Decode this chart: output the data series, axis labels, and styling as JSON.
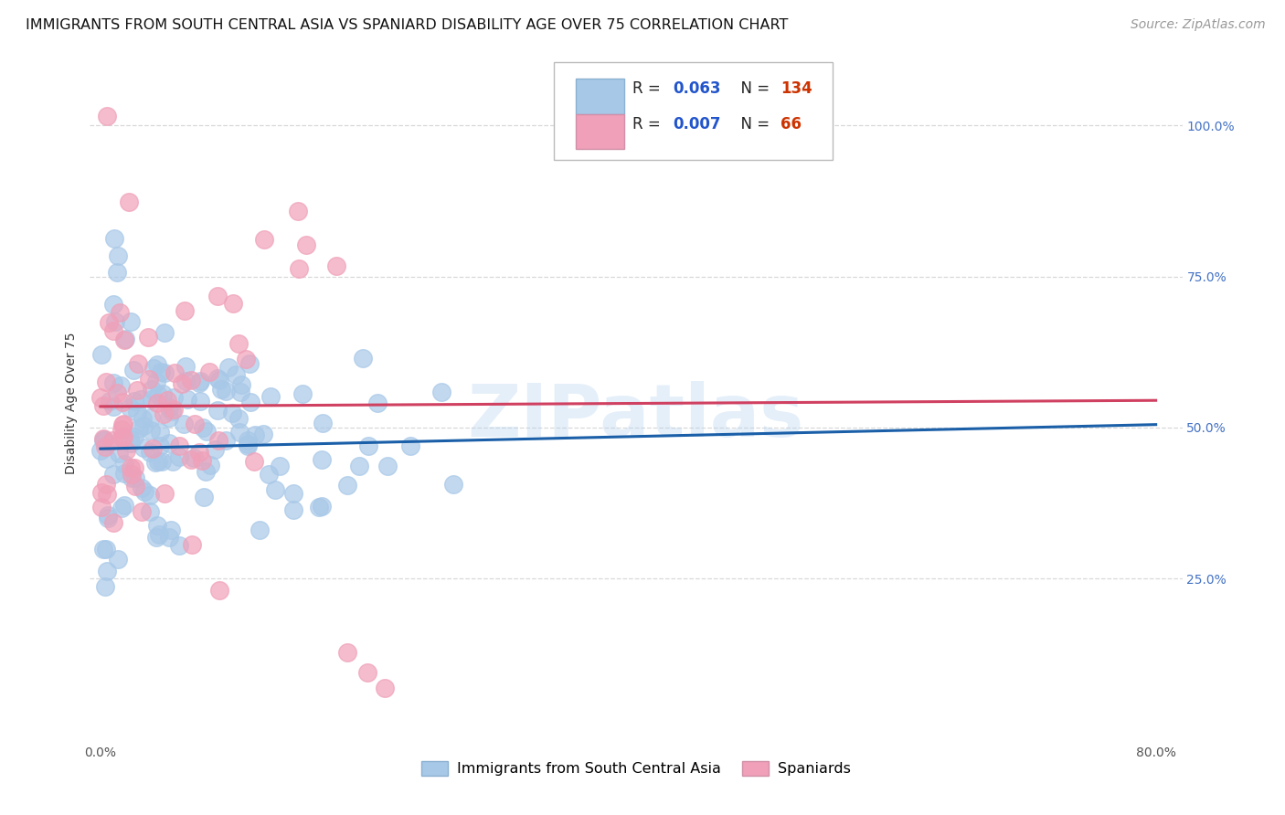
{
  "title": "IMMIGRANTS FROM SOUTH CENTRAL ASIA VS SPANIARD DISABILITY AGE OVER 75 CORRELATION CHART",
  "source": "Source: ZipAtlas.com",
  "ylabel": "Disability Age Over 75",
  "ytick_labels": [
    "25.0%",
    "50.0%",
    "75.0%",
    "100.0%"
  ],
  "ytick_values": [
    0.25,
    0.5,
    0.75,
    1.0
  ],
  "xlim": [
    0.0,
    0.8
  ],
  "ylim": [
    0.0,
    1.1
  ],
  "blue_R": 0.063,
  "blue_N": 134,
  "pink_R": 0.007,
  "pink_N": 66,
  "blue_color": "#a8c8e8",
  "pink_color": "#f0a0b8",
  "blue_line_color": "#1a5fa8",
  "pink_line_color": "#d04060",
  "legend_label_blue": "Immigrants from South Central Asia",
  "legend_label_pink": "Spaniards",
  "watermark": "ZIPatlas",
  "grid_color": "#d8d8d8",
  "background_color": "#ffffff",
  "title_fontsize": 11.5,
  "axis_label_fontsize": 10,
  "tick_fontsize": 10,
  "legend_fontsize": 12,
  "source_fontsize": 10,
  "blue_trendline_x": [
    0.0,
    0.8
  ],
  "blue_trendline_y": [
    0.465,
    0.505
  ],
  "pink_trendline_x": [
    0.0,
    0.8
  ],
  "pink_trendline_y": [
    0.535,
    0.545
  ],
  "right_label_color": "#4472c4",
  "legend_R_color": "#2255cc",
  "legend_N_color": "#cc3300"
}
